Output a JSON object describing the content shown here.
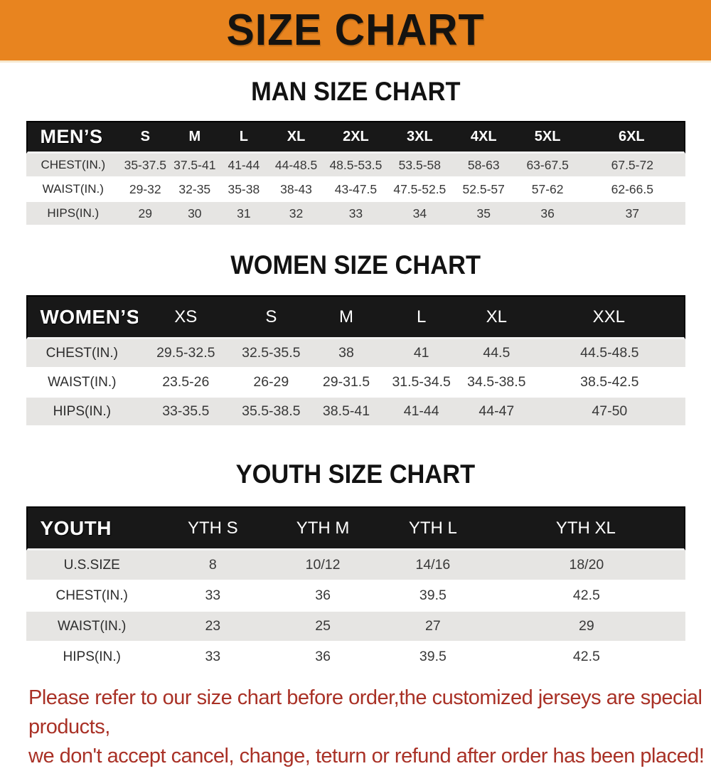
{
  "banner": {
    "title": "SIZE CHART",
    "bg_color": "#E8841F",
    "text_color": "#151310"
  },
  "sections": [
    {
      "heading": "MAN SIZE CHART",
      "table": {
        "label": "MEN’S",
        "columns": [
          "S",
          "M",
          "L",
          "XL",
          "2XL",
          "3XL",
          "4XL",
          "5XL",
          "6XL"
        ],
        "rows": [
          {
            "label": "CHEST(IN.)",
            "values": [
              "35-37.5",
              "37.5-41",
              "41-44",
              "44-48.5",
              "48.5-53.5",
              "53.5-58",
              "58-63",
              "63-67.5",
              "67.5-72"
            ]
          },
          {
            "label": "WAIST(IN.)",
            "values": [
              "29-32",
              "32-35",
              "35-38",
              "38-43",
              "43-47.5",
              "47.5-52.5",
              "52.5-57",
              "57-62",
              "62-66.5"
            ]
          },
          {
            "label": "HIPS(IN.)",
            "values": [
              "29",
              "30",
              "31",
              "32",
              "33",
              "34",
              "35",
              "36",
              "37"
            ]
          }
        ]
      }
    },
    {
      "heading": "WOMEN SIZE CHART",
      "table": {
        "label": "WOMEN’S",
        "columns": [
          "XS",
          "S",
          "M",
          "L",
          "XL",
          "XXL"
        ],
        "rows": [
          {
            "label": "CHEST(IN.)",
            "values": [
              "29.5-32.5",
              "32.5-35.5",
              "38",
              "41",
              "44.5",
              "44.5-48.5"
            ]
          },
          {
            "label": "WAIST(IN.)",
            "values": [
              "23.5-26",
              "26-29",
              "29-31.5",
              "31.5-34.5",
              "34.5-38.5",
              "38.5-42.5"
            ]
          },
          {
            "label": "HIPS(IN.)",
            "values": [
              "33-35.5",
              "35.5-38.5",
              "38.5-41",
              "41-44",
              "44-47",
              "47-50"
            ]
          }
        ]
      }
    },
    {
      "heading": "YOUTH SIZE CHART",
      "table": {
        "label": "YOUTH",
        "columns": [
          "YTH S",
          "YTH M",
          "YTH L",
          "YTH XL"
        ],
        "rows": [
          {
            "label": "U.S.SIZE",
            "values": [
              "8",
              "10/12",
              "14/16",
              "18/20"
            ]
          },
          {
            "label": "CHEST(IN.)",
            "values": [
              "33",
              "36",
              "39.5",
              "42.5"
            ]
          },
          {
            "label": "WAIST(IN.)",
            "values": [
              "23",
              "25",
              "27",
              "29"
            ]
          },
          {
            "label": "HIPS(IN.)",
            "values": [
              "33",
              "36",
              "39.5",
              "42.5"
            ]
          }
        ]
      }
    }
  ],
  "footer": {
    "lines": [
      "Please refer to our size chart before order,the customized jerseys are special products,",
      "we don't accept cancel, change, teturn or refund after order has been placed!"
    ],
    "text_color": "#A93126"
  },
  "colors": {
    "header_row_bg": "#181818",
    "stripe_row_bg": "#E6E5E3"
  }
}
